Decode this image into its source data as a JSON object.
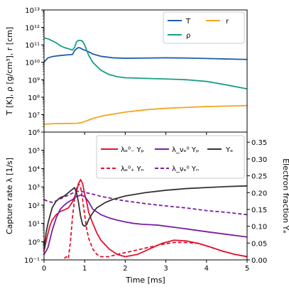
{
  "chart_data": [
    {
      "type": "line",
      "panel": "top",
      "xlabel": "",
      "ylabel": "T [K], ρ [g/cm³], r [cm]",
      "xlim": [
        0,
        5
      ],
      "ylim": [
        1000000.0,
        10000000000000.0
      ],
      "yscale": "log",
      "x_ticks": [
        "0",
        "1",
        "2",
        "3",
        "4",
        "5"
      ],
      "y_ticks": [
        "10⁶",
        "10⁷",
        "10⁸",
        "10⁹",
        "10¹⁰",
        "10¹¹",
        "10¹²",
        "10¹³"
      ],
      "legend_position": "top-right",
      "series": [
        {
          "name": "T",
          "color": "#1f5fa8",
          "x": [
            0,
            0.05,
            0.1,
            0.2,
            0.3,
            0.45,
            0.6,
            0.7,
            0.75,
            0.8,
            0.85,
            0.9,
            0.95,
            1.0,
            1.1,
            1.2,
            1.4,
            1.7,
            2.0,
            2.5,
            3.0,
            3.5,
            4.0,
            4.5,
            5.0
          ],
          "y": [
            10000000000.0,
            14000000000.0,
            18000000000.0,
            21000000000.0,
            23000000000.0,
            25000000000.0,
            27000000000.0,
            28000000000.0,
            45000000000.0,
            60000000000.0,
            70000000000.0,
            65000000000.0,
            55000000000.0,
            50000000000.0,
            40000000000.0,
            30000000000.0,
            22000000000.0,
            18000000000.0,
            17000000000.0,
            17500000000.0,
            18000000000.0,
            17500000000.0,
            16500000000.0,
            15500000000.0,
            14500000000.0
          ]
        },
        {
          "name": "ρ",
          "color": "#1a9e82",
          "x": [
            0,
            0.1,
            0.2,
            0.3,
            0.4,
            0.5,
            0.6,
            0.7,
            0.75,
            0.8,
            0.85,
            0.9,
            0.95,
            1.0,
            1.05,
            1.1,
            1.2,
            1.4,
            1.6,
            1.8,
            2.0,
            2.5,
            3.0,
            3.5,
            4.0,
            4.5,
            5.0
          ],
          "y": [
            250000000000.0,
            220000000000.0,
            170000000000.0,
            130000000000.0,
            90000000000.0,
            70000000000.0,
            60000000000.0,
            50000000000.0,
            70000000000.0,
            150000000000.0,
            180000000000.0,
            180000000000.0,
            160000000000.0,
            100000000000.0,
            50000000000.0,
            25000000000.0,
            10000000000.0,
            3500000000.0,
            2000000000.0,
            1500000000.0,
            1300000000.0,
            1200000000.0,
            1100000000.0,
            1000000000.0,
            800000000.0,
            500000000.0,
            300000000.0
          ]
        },
        {
          "name": "r",
          "color": "#f5a623",
          "x": [
            0,
            0.2,
            0.4,
            0.6,
            0.8,
            0.9,
            1.0,
            1.2,
            1.5,
            2.0,
            2.5,
            3.0,
            3.5,
            4.0,
            4.5,
            5.0
          ],
          "y": [
            2800000.0,
            3000000.0,
            3100000.0,
            3100000.0,
            3200000.0,
            3400000.0,
            4000000.0,
            6000000.0,
            9000000.0,
            14000000.0,
            19000000.0,
            23000000.0,
            26000000.0,
            29000000.0,
            31000000.0,
            33000000.0
          ]
        }
      ]
    },
    {
      "type": "line",
      "panel": "bottom",
      "xlabel": "Time [ms]",
      "ylabel": "Capture rate λ [1/s]",
      "y2label": "Electron fraction Yₑ",
      "xlim": [
        0,
        5
      ],
      "ylim": [
        0.1,
        1000000.0
      ],
      "yscale": "log",
      "y2lim": [
        0,
        0.38
      ],
      "x_ticks": [
        "0",
        "1",
        "2",
        "3",
        "4",
        "5"
      ],
      "y_ticks": [
        "10⁻¹",
        "10⁰",
        "10¹",
        "10²",
        "10³",
        "10⁴",
        "10⁵"
      ],
      "y2_ticks": [
        "0.00",
        "0.05",
        "0.10",
        "0.15",
        "0.20",
        "0.25",
        "0.30",
        "0.35"
      ],
      "legend_position": "top-right",
      "series": [
        {
          "name": "λₑ⁰₋ Yₚ",
          "color": "#e0142f",
          "style": "solid",
          "axis": "left",
          "x": [
            0.0,
            0.05,
            0.1,
            0.15,
            0.2,
            0.3,
            0.4,
            0.5,
            0.6,
            0.7,
            0.78,
            0.85,
            0.9,
            0.95,
            1.0,
            1.05,
            1.1,
            1.2,
            1.3,
            1.4,
            1.6,
            1.8,
            2.0,
            2.3,
            2.6,
            2.9,
            3.2,
            3.5,
            3.8,
            4.1,
            4.4,
            4.7,
            5.0
          ],
          "y": [
            0.3,
            1.0,
            3.0,
            8.0,
            15.0,
            30.0,
            45.0,
            55.0,
            70.0,
            150.0,
            400.0,
            1500.0,
            2500.0,
            1500.0,
            400.0,
            150.0,
            40.0,
            10.0,
            3.0,
            1.2,
            0.4,
            0.2,
            0.15,
            0.2,
            0.4,
            0.8,
            1.2,
            1.1,
            0.8,
            0.5,
            0.3,
            0.2,
            0.15
          ]
        },
        {
          "name": "λₑ⁰₊ Yₙ",
          "color": "#e0142f",
          "style": "dashed",
          "axis": "left",
          "x": [
            0.5,
            0.55,
            0.6,
            0.65,
            0.7,
            0.75,
            0.8,
            0.85,
            0.9,
            0.95,
            1.0,
            1.05,
            1.1,
            1.2,
            1.3,
            1.4,
            1.6,
            1.8,
            2.0,
            2.3,
            2.6,
            2.9,
            3.2,
            3.5,
            3.8,
            4.1,
            4.4,
            4.7,
            5.0
          ],
          "y": [
            0.12,
            0.15,
            0.12,
            1.0,
            20.0,
            200.0,
            800.0,
            1500.0,
            1000.0,
            200.0,
            30.0,
            5.0,
            1.5,
            0.4,
            0.2,
            0.15,
            0.15,
            0.2,
            0.25,
            0.35,
            0.5,
            0.7,
            0.9,
            0.9,
            0.8,
            0.5,
            0.3,
            0.2,
            0.15
          ]
        },
        {
          "name": "λ_νₑ⁰ Yₚ",
          "color": "#7b1fa2",
          "style": "solid",
          "axis": "left",
          "x": [
            0.0,
            0.05,
            0.1,
            0.2,
            0.3,
            0.4,
            0.5,
            0.6,
            0.7,
            0.8,
            0.9,
            1.0,
            1.1,
            1.2,
            1.4,
            1.6,
            1.8,
            2.0,
            2.2,
            2.4,
            2.6,
            2.8,
            3.0,
            3.5,
            4.0,
            4.5,
            5.0
          ],
          "y": [
            0.2,
            0.3,
            0.5,
            4.0,
            20.0,
            60.0,
            100.0,
            150.0,
            200.0,
            300.0,
            350.0,
            300.0,
            150.0,
            60.0,
            30.0,
            20.0,
            15.0,
            12.0,
            10.0,
            9.0,
            8.5,
            8.0,
            7.0,
            5.0,
            3.5,
            2.5,
            1.8
          ]
        },
        {
          "name": "λ_νₑ⁰ Yₙ",
          "color": "#7b1fa2",
          "style": "dashed",
          "axis": "left",
          "x": [
            0.0,
            0.1,
            0.2,
            0.3,
            0.4,
            0.5,
            0.6,
            0.7,
            0.8,
            0.9,
            1.0,
            1.2,
            1.4,
            1.6,
            1.8,
            2.0,
            2.5,
            3.0,
            3.5,
            4.0,
            4.5,
            5.0
          ],
          "y": [
            200.0,
            160.0,
            140.0,
            170.0,
            220.0,
            280.0,
            350.0,
            450.0,
            550.0,
            600.0,
            500.0,
            400.0,
            300.0,
            250.0,
            200.0,
            170.0,
            120.0,
            90.0,
            70.0,
            50.0,
            40.0,
            30.0
          ]
        },
        {
          "name": "Yₑ",
          "color": "#333333",
          "style": "solid",
          "axis": "right",
          "x": [
            0.0,
            0.05,
            0.1,
            0.2,
            0.3,
            0.4,
            0.5,
            0.6,
            0.7,
            0.75,
            0.8,
            0.85,
            0.9,
            0.95,
            1.0,
            1.05,
            1.1,
            1.2,
            1.3,
            1.5,
            1.7,
            2.0,
            2.5,
            3.0,
            3.5,
            4.0,
            4.5,
            5.0
          ],
          "y": [
            0.03,
            0.08,
            0.11,
            0.155,
            0.175,
            0.185,
            0.19,
            0.2,
            0.21,
            0.215,
            0.2,
            0.17,
            0.13,
            0.105,
            0.1,
            0.105,
            0.12,
            0.14,
            0.155,
            0.17,
            0.18,
            0.19,
            0.2,
            0.207,
            0.212,
            0.215,
            0.218,
            0.22
          ]
        }
      ]
    }
  ]
}
